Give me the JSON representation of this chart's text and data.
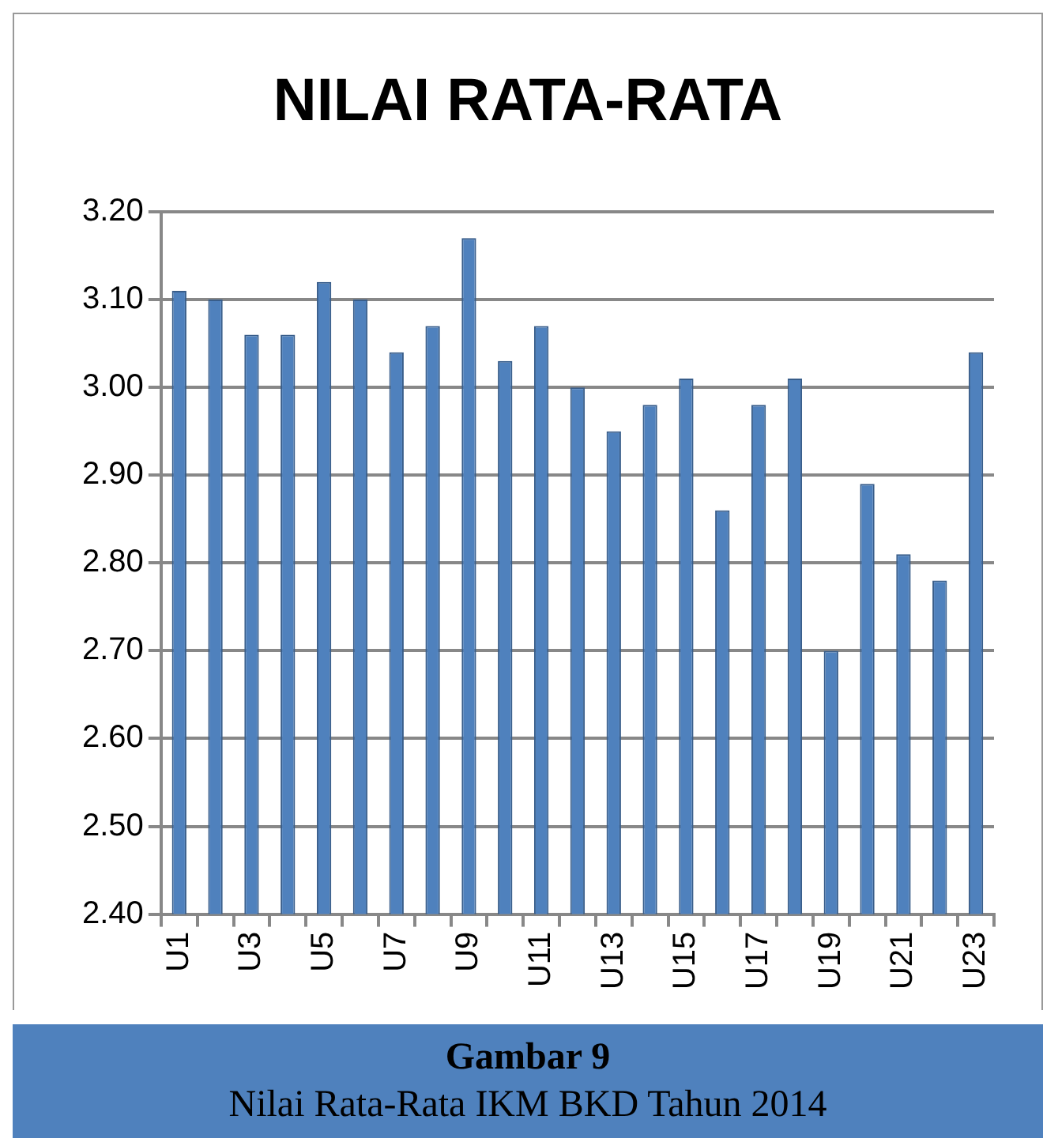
{
  "chart_data": {
    "type": "bar",
    "title": "NILAI RATA-RATA",
    "categories": [
      "U1",
      null,
      "U3",
      null,
      "U5",
      null,
      "U7",
      null,
      "U9",
      null,
      "U11",
      null,
      "U13",
      null,
      "U15",
      null,
      "U17",
      null,
      "U19",
      null,
      "U21",
      null,
      "U23"
    ],
    "values": [
      3.11,
      3.1,
      3.06,
      3.06,
      3.12,
      3.1,
      3.04,
      3.07,
      3.17,
      3.03,
      3.07,
      3.0,
      2.95,
      2.98,
      3.01,
      2.86,
      2.98,
      3.01,
      2.7,
      2.89,
      2.81,
      2.78,
      3.04
    ],
    "color": "#4f81bd",
    "ylim": [
      2.4,
      3.2
    ],
    "yticks": [
      {
        "value": 2.4,
        "label": "2.40"
      },
      {
        "value": 2.5,
        "label": "2.50"
      },
      {
        "value": 2.6,
        "label": "2.60"
      },
      {
        "value": 2.7,
        "label": "2.70"
      },
      {
        "value": 2.8,
        "label": "2.80"
      },
      {
        "value": 2.9,
        "label": "2.90"
      },
      {
        "value": 3.0,
        "label": "3.00"
      },
      {
        "value": 3.1,
        "label": "3.10"
      },
      {
        "value": 3.2,
        "label": "3.20"
      }
    ],
    "grid": "y",
    "annotations": [
      "Gambar 9",
      "Nilai Rata-Rata IKM BKD Tahun 2014"
    ]
  }
}
